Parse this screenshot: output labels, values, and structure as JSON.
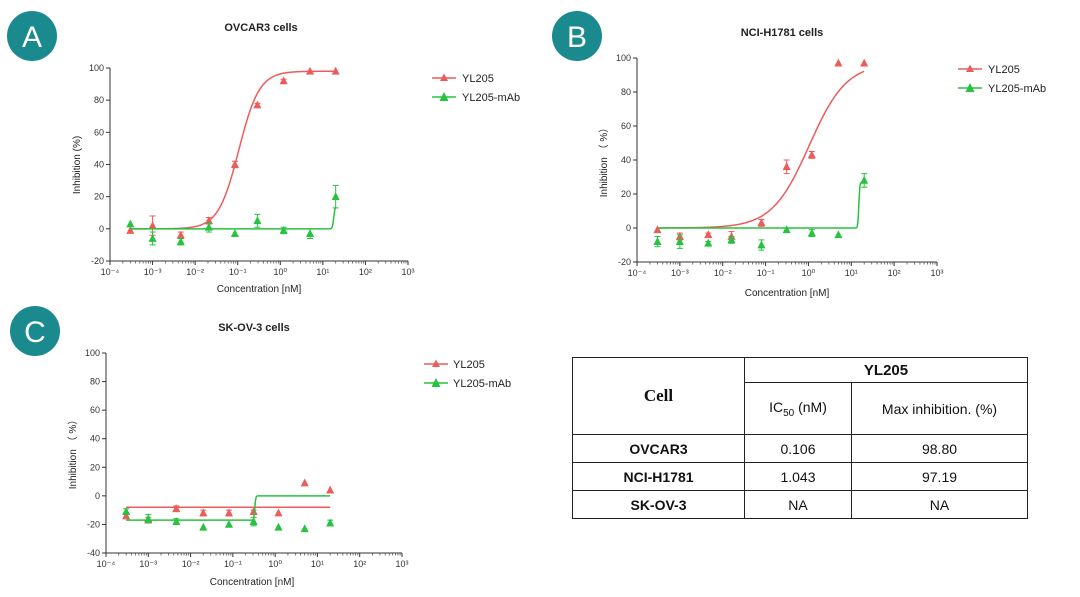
{
  "chart_data": [
    {
      "panel": "A",
      "type": "scatter",
      "title": "OVCAR3 cells",
      "xlabel": "Concentration [nM]",
      "ylabel": "Inhibition (%)",
      "xscale": "log",
      "xlim": [
        0.0001,
        1000
      ],
      "ylim": [
        -20,
        100
      ],
      "xticks": [
        "10⁻⁴",
        "10⁻³",
        "10⁻²",
        "10⁻¹",
        "10⁰",
        "10¹",
        "10²",
        "10³"
      ],
      "yticks": [
        "100",
        "80",
        "60",
        "40",
        "20",
        "0",
        "-20"
      ],
      "legend_position": "top-right",
      "fit": "sigmoidal curve per series",
      "series": [
        {
          "name": "YL205",
          "color": "#ee5b5b",
          "marker": "triangle",
          "x": [
            0.0003,
            0.001,
            0.0046,
            0.021,
            0.086,
            0.29,
            1.2,
            5,
            20
          ],
          "y": [
            -1,
            2,
            -4,
            5,
            40,
            77,
            92,
            98,
            98
          ],
          "err": [
            0,
            6,
            2,
            2,
            2,
            1,
            1,
            0,
            0
          ],
          "curve": {
            "model": "sigmoid",
            "bottom": 0,
            "top": 98,
            "ec50": 0.106,
            "hill": 1.8
          }
        },
        {
          "name": "YL205-mAb",
          "color": "#27c23f",
          "marker": "triangle",
          "x": [
            0.0003,
            0.001,
            0.0046,
            0.021,
            0.086,
            0.29,
            1.2,
            5,
            20
          ],
          "y": [
            3,
            -6,
            -8,
            1,
            -3,
            5,
            -1,
            -3,
            20
          ],
          "err": [
            0,
            4,
            2,
            3,
            0,
            4,
            2,
            3,
            7
          ],
          "curve": {
            "model": "step",
            "bottom": 0,
            "top": 14,
            "ec50": 18,
            "hill": 30
          }
        }
      ]
    },
    {
      "panel": "B",
      "type": "scatter",
      "title": "NCI-H1781 cells",
      "xlabel": "Concentration [nM]",
      "ylabel": "Inhibition （ %）",
      "xscale": "log",
      "xlim": [
        0.0001,
        1000
      ],
      "ylim": [
        -20,
        100
      ],
      "xticks": [
        "10⁻⁴",
        "10⁻³",
        "10⁻²",
        "10⁻¹",
        "10⁰",
        "10¹",
        "10²",
        "10³"
      ],
      "yticks": [
        "100",
        "80",
        "60",
        "40",
        "20",
        "0",
        "-20"
      ],
      "legend_position": "top-right",
      "fit": "sigmoidal curve per series",
      "series": [
        {
          "name": "YL205",
          "color": "#ee5b5b",
          "marker": "triangle",
          "x": [
            0.0003,
            0.001,
            0.0046,
            0.016,
            0.08,
            0.31,
            1.2,
            5,
            20
          ],
          "y": [
            -1,
            -5,
            -4,
            -5,
            3,
            36,
            43,
            97,
            97
          ],
          "err": [
            0,
            2,
            1,
            3,
            2,
            4,
            2,
            0,
            0
          ],
          "curve": {
            "model": "sigmoid",
            "bottom": 0,
            "top": 97,
            "ec50": 1.043,
            "hill": 1.0
          }
        },
        {
          "name": "YL205-mAb",
          "color": "#27c23f",
          "marker": "triangle",
          "x": [
            0.0003,
            0.001,
            0.0046,
            0.016,
            0.08,
            0.31,
            1.2,
            5,
            20
          ],
          "y": [
            -8,
            -8,
            -9,
            -7,
            -10,
            -1,
            -3,
            -4,
            28
          ],
          "err": [
            3,
            4,
            1,
            2,
            3,
            0,
            2,
            0,
            4
          ],
          "curve": {
            "model": "step",
            "bottom": 0,
            "top": 27,
            "ec50": 15,
            "hill": 40
          }
        }
      ]
    },
    {
      "panel": "C",
      "type": "scatter",
      "title": "SK-OV-3 cells",
      "xlabel": "Concentration [nM]",
      "ylabel": "Inhibition （ %）",
      "xscale": "log",
      "xlim": [
        0.0001,
        1000
      ],
      "ylim": [
        -40,
        100
      ],
      "xticks": [
        "10⁻⁴",
        "10⁻³",
        "10⁻²",
        "10⁻¹",
        "10⁰",
        "10¹",
        "10²",
        "10³"
      ],
      "yticks": [
        "100",
        "80",
        "60",
        "40",
        "20",
        "0",
        "-20",
        "-40"
      ],
      "legend_position": "top-right",
      "fit": "sigmoidal curve per series",
      "series": [
        {
          "name": "YL205",
          "color": "#ee5b5b",
          "marker": "triangle",
          "x": [
            0.0003,
            0.001,
            0.0046,
            0.02,
            0.081,
            0.31,
            1.2,
            5,
            20
          ],
          "y": [
            -14,
            -17,
            -9,
            -12,
            -12,
            -11,
            -12,
            9,
            4
          ],
          "err": [
            2,
            2,
            2,
            2,
            2,
            1,
            0,
            0,
            0
          ],
          "curve": {
            "model": "flat",
            "level": -8
          }
        },
        {
          "name": "YL205-mAb",
          "color": "#27c23f",
          "marker": "triangle",
          "x": [
            0.0003,
            0.001,
            0.0046,
            0.02,
            0.081,
            0.31,
            1.2,
            5,
            20
          ],
          "y": [
            -11,
            -16,
            -18,
            -22,
            -20,
            -18,
            -22,
            -23,
            -19
          ],
          "err": [
            2,
            3,
            2,
            0,
            0,
            3,
            0,
            0,
            2
          ],
          "curve": {
            "model": "step",
            "bottom": -17,
            "top": 0,
            "ec50": 0.33,
            "hill": 40
          }
        }
      ]
    }
  ],
  "panels": {
    "A": {
      "letter": "A",
      "title": "OVCAR3 cells",
      "ylabel": "Inhibition (%)",
      "xlabel": "Concentration [nM]"
    },
    "B": {
      "letter": "B",
      "title": "NCI-H1781 cells",
      "ylabel": "Inhibition （ %）",
      "xlabel": "Concentration [nM]"
    },
    "C": {
      "letter": "C",
      "title": "SK-OV-3 cells",
      "ylabel": "Inhibition （ %）",
      "xlabel": "Concentration [nM]"
    }
  },
  "legend": {
    "series_1": "YL205",
    "series_2": "YL205-mAb"
  },
  "badge_color": "#1b8a8f",
  "table": {
    "cell_header": "Cell",
    "group_header": "YL205",
    "ic50_label": "IC",
    "ic50_sub": "50",
    "ic50_unit": " (nM)",
    "max_label": "Max inhibition. (%)",
    "rows": [
      {
        "cell": "OVCAR3",
        "ic50": "0.106",
        "max": "98.80"
      },
      {
        "cell": "NCI-H1781",
        "ic50": "1.043",
        "max": "97.19"
      },
      {
        "cell": "SK-OV-3",
        "ic50": "NA",
        "max": "NA"
      }
    ]
  }
}
